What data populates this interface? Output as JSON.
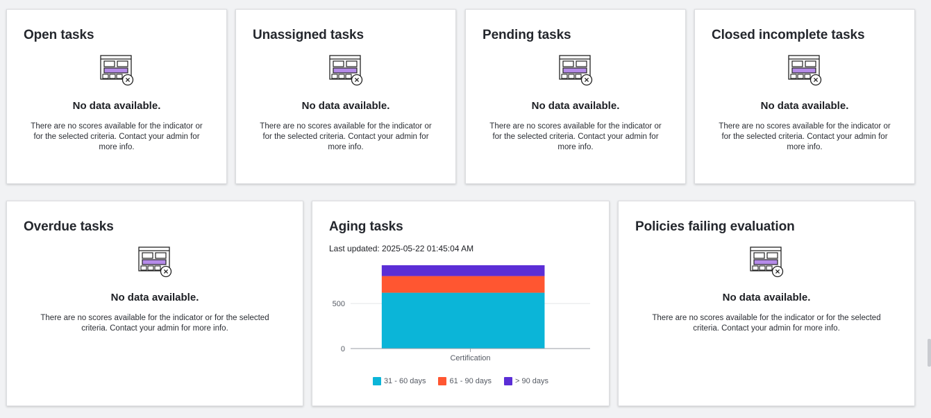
{
  "cards": {
    "open": {
      "title": "Open tasks",
      "empty_title": "No data available.",
      "empty_desc": "There are no scores available for the indicator or for the selected criteria. Contact your admin for more info."
    },
    "unassigned": {
      "title": "Unassigned tasks",
      "empty_title": "No data available.",
      "empty_desc": "There are no scores available for the indicator or for the selected criteria. Contact your admin for more info."
    },
    "pending": {
      "title": "Pending tasks",
      "empty_title": "No data available.",
      "empty_desc": "There are no scores available for the indicator or for the selected criteria. Contact your admin for more info."
    },
    "closed_incomplete": {
      "title": "Closed incomplete tasks",
      "empty_title": "No data available.",
      "empty_desc": "There are no scores available for the indicator or for the selected criteria. Contact your admin for more info."
    },
    "overdue": {
      "title": "Overdue tasks",
      "empty_title": "No data available.",
      "empty_desc": "There are no scores available for the indicator or for the selected criteria. Contact your admin for more info."
    },
    "aging": {
      "title": "Aging tasks",
      "last_updated": "Last updated: 2025-05-22 01:45:04 AM"
    },
    "policies": {
      "title": "Policies failing evaluation",
      "empty_title": "No data available.",
      "empty_desc": "There are no scores available for the indicator or for the selected criteria. Contact your admin for more info."
    }
  },
  "icons": {
    "empty_state": "no-data-table-icon"
  },
  "chart_data": {
    "type": "bar",
    "stacked": true,
    "categories": [
      "Certification"
    ],
    "series": [
      {
        "name": "31 - 60 days",
        "values": [
          620
        ],
        "color": "#0bb5d8"
      },
      {
        "name": "61 - 90 days",
        "values": [
          185
        ],
        "color": "#ff5631"
      },
      {
        "name": "> 90 days",
        "values": [
          120
        ],
        "color": "#5b2ed6"
      }
    ],
    "y_ticks": [
      "0",
      "500"
    ],
    "ylim": [
      0,
      925
    ],
    "grid": true,
    "legend_position": "bottom"
  }
}
